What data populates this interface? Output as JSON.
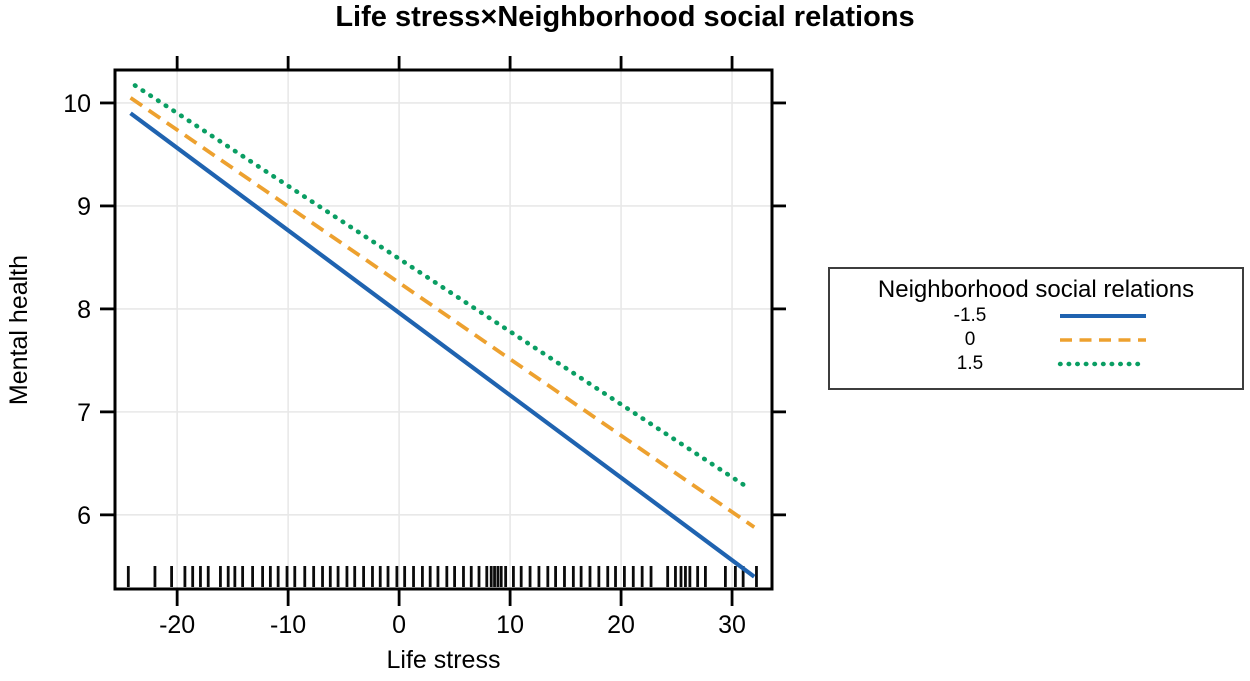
{
  "chart_data": {
    "type": "line",
    "title": "Life stress×Neighborhood social relations",
    "xlabel": "Life stress",
    "ylabel": "Mental health",
    "xlim": [
      -25.6,
      33.6
    ],
    "ylim": [
      5.28,
      10.32
    ],
    "xticks": [
      -20,
      -10,
      0,
      10,
      20,
      30
    ],
    "yticks": [
      6,
      7,
      8,
      9,
      10
    ],
    "grid": true,
    "grid_color": "#e8e8e8",
    "axis_color": "#000000",
    "series": [
      {
        "name": "-1.5",
        "style": "solid",
        "color": "#1F63B0",
        "x": [
          -24.2,
          32.0
        ],
        "y": [
          9.9,
          5.4
        ]
      },
      {
        "name": "0",
        "style": "dashed",
        "color": "#EDA12F",
        "x": [
          -24.2,
          32.0
        ],
        "y": [
          10.05,
          5.88
        ]
      },
      {
        "name": "1.5",
        "style": "dotted",
        "color": "#0A9E63",
        "x": [
          -23.8,
          31.5
        ],
        "y": [
          10.17,
          6.26
        ]
      }
    ],
    "rug_x": [
      -24.4,
      -22.0,
      -20.5,
      -19.3,
      -18.6,
      -17.9,
      -17.2,
      -16.1,
      -15.4,
      -14.8,
      -14.1,
      -13.2,
      -12.3,
      -11.6,
      -10.9,
      -10.1,
      -9.4,
      -8.5,
      -7.7,
      -6.9,
      -6.2,
      -5.5,
      -4.7,
      -4.0,
      -3.2,
      -2.4,
      -1.7,
      -1.0,
      -0.2,
      0.5,
      1.3,
      2.1,
      2.8,
      3.5,
      4.3,
      5.0,
      5.8,
      6.5,
      7.2,
      7.9,
      8.3,
      8.6,
      8.9,
      9.2,
      9.6,
      10.3,
      11.0,
      11.8,
      12.6,
      13.4,
      14.1,
      14.9,
      15.7,
      16.4,
      17.2,
      18.0,
      18.8,
      19.5,
      20.3,
      21.1,
      21.9,
      22.7,
      24.2,
      24.9,
      25.4,
      25.8,
      26.2,
      26.9,
      27.6,
      29.4,
      30.3,
      31.0,
      32.2
    ],
    "rug_color": "#0a0a0a"
  },
  "legend": {
    "title": "Neighborhood social relations",
    "position": "right"
  }
}
